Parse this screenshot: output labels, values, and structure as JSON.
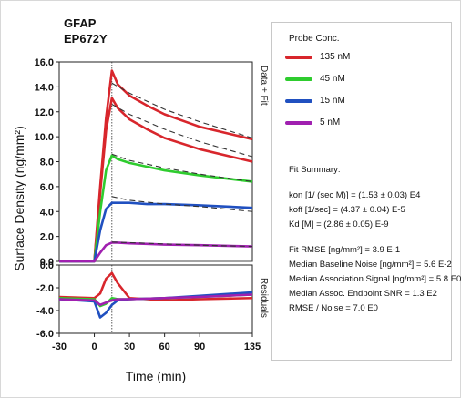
{
  "chart_data": {
    "type": "line",
    "title": "GFAP",
    "subtitle": "EP672Y",
    "xlabel": "Time (min)",
    "ylabel": "Surface Density (ng/mm²)",
    "x_ticks": [
      "-30",
      "0",
      "30",
      "60",
      "90",
      "135"
    ],
    "xlim": [
      -30,
      135
    ],
    "upper_panel": {
      "label": "Data + Fit",
      "ylim": [
        0,
        16
      ],
      "y_ticks": [
        "0.0",
        "2.0",
        "4.0",
        "6.0",
        "8.0",
        "10.0",
        "12.0",
        "14.0",
        "16.0"
      ],
      "series": [
        {
          "name": "135 nM",
          "color": "#d8262c",
          "x": [
            -30,
            0,
            5,
            10,
            15,
            20,
            30,
            45,
            60,
            90,
            135
          ],
          "y": [
            0,
            0,
            6,
            11.5,
            15.3,
            14.2,
            13.3,
            12.5,
            11.8,
            10.8,
            9.8
          ]
        },
        {
          "name": "135 nM",
          "color": "#d8262c",
          "x": [
            -30,
            0,
            5,
            10,
            15,
            20,
            30,
            45,
            60,
            90,
            135
          ],
          "y": [
            0,
            0,
            5.5,
            10.5,
            13.1,
            12.3,
            11.4,
            10.6,
            9.9,
            9.0,
            8.0
          ]
        },
        {
          "name": "45 nM",
          "color": "#2ecc2e",
          "x": [
            -30,
            0,
            5,
            10,
            15,
            20,
            30,
            45,
            60,
            90,
            135
          ],
          "y": [
            0,
            0,
            4,
            7.3,
            8.5,
            8.2,
            7.9,
            7.6,
            7.3,
            6.9,
            6.4
          ]
        },
        {
          "name": "15 nM",
          "color": "#2050c0",
          "x": [
            -30,
            0,
            5,
            10,
            15,
            20,
            30,
            45,
            60,
            90,
            135
          ],
          "y": [
            0,
            0,
            2.5,
            4.2,
            4.7,
            4.7,
            4.7,
            4.6,
            4.6,
            4.5,
            4.3
          ]
        },
        {
          "name": "5 nM",
          "color": "#a020b0",
          "x": [
            -30,
            0,
            5,
            10,
            15,
            20,
            30,
            45,
            60,
            90,
            135
          ],
          "y": [
            0,
            0,
            0.7,
            1.3,
            1.5,
            1.5,
            1.45,
            1.4,
            1.35,
            1.3,
            1.2
          ]
        }
      ],
      "fits": [
        {
          "x": [
            15,
            30,
            60,
            90,
            135
          ],
          "y": [
            14.3,
            13.5,
            12.2,
            11.2,
            9.9
          ]
        },
        {
          "x": [
            15,
            30,
            60,
            90,
            135
          ],
          "y": [
            12.6,
            11.8,
            10.6,
            9.6,
            8.4
          ]
        },
        {
          "x": [
            15,
            30,
            60,
            90,
            135
          ],
          "y": [
            8.6,
            8.1,
            7.5,
            7.0,
            6.4
          ]
        },
        {
          "x": [
            15,
            30,
            60,
            90,
            135
          ],
          "y": [
            5.2,
            4.9,
            4.6,
            4.4,
            4.0
          ]
        },
        {
          "x": [
            15,
            30,
            60,
            90,
            135
          ],
          "y": [
            1.55,
            1.5,
            1.4,
            1.3,
            1.2
          ]
        }
      ]
    },
    "lower_panel": {
      "label": "Residuals",
      "ylim": [
        -6,
        0
      ],
      "y_ticks": [
        "-6.0",
        "-4.0",
        "-2.0",
        "0.0"
      ],
      "series": [
        {
          "name": "135 nM",
          "color": "#d8262c",
          "x": [
            -30,
            0,
            5,
            10,
            15,
            20,
            30,
            60,
            90,
            135
          ],
          "y": [
            -2.8,
            -2.9,
            -2.5,
            -1.2,
            -0.7,
            -1.6,
            -2.9,
            -3.1,
            -3.0,
            -2.9
          ]
        },
        {
          "name": "45 nM",
          "color": "#2ecc2e",
          "x": [
            -30,
            0,
            5,
            10,
            15,
            20,
            30,
            60,
            90,
            135
          ],
          "y": [
            -2.9,
            -3.0,
            -3.6,
            -3.4,
            -2.9,
            -3.0,
            -3.0,
            -2.9,
            -2.8,
            -2.6
          ]
        },
        {
          "name": "15 nM",
          "color": "#2050c0",
          "x": [
            -30,
            0,
            5,
            10,
            15,
            20,
            30,
            60,
            90,
            135
          ],
          "y": [
            -3.0,
            -3.2,
            -4.6,
            -4.2,
            -3.5,
            -3.1,
            -3.0,
            -2.9,
            -2.7,
            -2.4
          ]
        },
        {
          "name": "5 nM",
          "color": "#a020b0",
          "x": [
            -30,
            0,
            5,
            10,
            15,
            20,
            30,
            60,
            90,
            135
          ],
          "y": [
            -3.0,
            -3.1,
            -3.5,
            -3.3,
            -3.1,
            -3.0,
            -3.0,
            -2.9,
            -2.8,
            -2.6
          ]
        }
      ]
    },
    "grid": false
  },
  "legend": {
    "title": "Probe Conc.",
    "items": [
      {
        "label": "135 nM",
        "color": "#d8262c"
      },
      {
        "label": "45 nM",
        "color": "#2ecc2e"
      },
      {
        "label": "15 nM",
        "color": "#2050c0"
      },
      {
        "label": "5 nM",
        "color": "#a020b0"
      }
    ]
  },
  "fit_summary": {
    "heading": "Fit Summary:",
    "kon": "kon  [1/ (sec M)]  =  (1.53 ± 0.03)  E4",
    "koff": "koff  [1/sec]  =  (4.37 ± 0.04)  E-5",
    "kd": "Kd  [M]  =  (2.86 ± 0.05)  E-9",
    "rmse": "Fit RMSE  [ng/mm²]  =  3.9  E-1",
    "baseline_noise": "Median Baseline Noise  [ng/mm²]  =  5.6  E-2",
    "assoc_signal": "Median Association Signal  [ng/mm²]  =  5.8  E0",
    "endpoint_snr": "Median Assoc. Endpoint SNR  =  1.3  E2",
    "rmse_noise": "RMSE / Noise  =  7.0  E0"
  }
}
